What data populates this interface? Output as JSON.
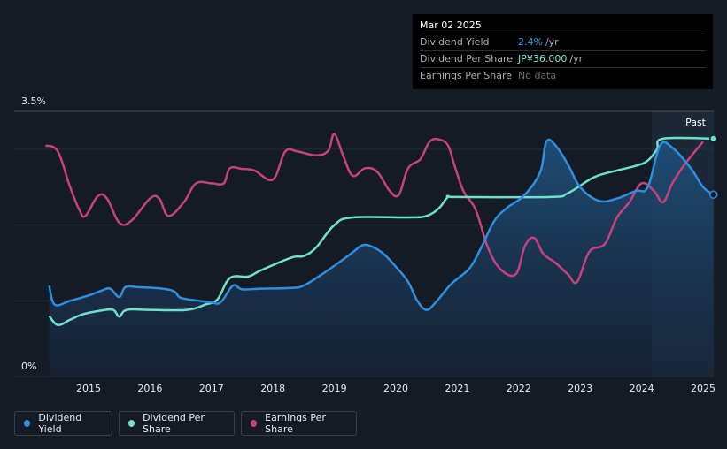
{
  "tooltip": {
    "date": "Mar 02 2025",
    "rows": [
      {
        "label": "Dividend Yield",
        "value": "2.4%",
        "unit": "/yr"
      },
      {
        "label": "Dividend Per Share",
        "value": "JP¥36.000",
        "unit": "/yr"
      },
      {
        "label": "Earnings Per Share",
        "value": "No data",
        "unit": ""
      }
    ]
  },
  "legend": [
    {
      "label": "Dividend Yield",
      "color": "#2d8fe0"
    },
    {
      "label": "Dividend Per Share",
      "color": "#6fe0cb"
    },
    {
      "label": "Earnings Per Share",
      "color": "#c8417f"
    }
  ],
  "chart_data": {
    "type": "line",
    "past_label": "Past",
    "y_axis": {
      "min": 0,
      "max": 3.5,
      "tick_labels": [
        "3.5%",
        "0%"
      ]
    },
    "x_tick_labels": [
      "2015",
      "2016",
      "2017",
      "2018",
      "2019",
      "2020",
      "2021",
      "2022",
      "2023",
      "2024",
      "2025"
    ],
    "series": [
      {
        "name": "Dividend Yield",
        "unit": "%",
        "color": "#2d8fe0",
        "points": [
          [
            2014.36,
            1.2
          ],
          [
            2014.45,
            0.95
          ],
          [
            2014.7,
            1.0
          ],
          [
            2015.0,
            1.07
          ],
          [
            2015.2,
            1.13
          ],
          [
            2015.35,
            1.16
          ],
          [
            2015.5,
            1.05
          ],
          [
            2015.6,
            1.18
          ],
          [
            2015.8,
            1.18
          ],
          [
            2016.2,
            1.16
          ],
          [
            2016.4,
            1.12
          ],
          [
            2016.5,
            1.04
          ],
          [
            2016.8,
            1.0
          ],
          [
            2017.0,
            0.98
          ],
          [
            2017.15,
            0.98
          ],
          [
            2017.35,
            1.2
          ],
          [
            2017.5,
            1.15
          ],
          [
            2017.8,
            1.16
          ],
          [
            2018.3,
            1.17
          ],
          [
            2018.5,
            1.2
          ],
          [
            2018.8,
            1.35
          ],
          [
            2019.1,
            1.52
          ],
          [
            2019.3,
            1.64
          ],
          [
            2019.45,
            1.73
          ],
          [
            2019.6,
            1.72
          ],
          [
            2019.8,
            1.62
          ],
          [
            2020.0,
            1.45
          ],
          [
            2020.2,
            1.25
          ],
          [
            2020.35,
            1.0
          ],
          [
            2020.5,
            0.88
          ],
          [
            2020.65,
            0.98
          ],
          [
            2020.9,
            1.22
          ],
          [
            2021.2,
            1.43
          ],
          [
            2021.4,
            1.72
          ],
          [
            2021.6,
            2.05
          ],
          [
            2021.8,
            2.22
          ],
          [
            2022.1,
            2.4
          ],
          [
            2022.35,
            2.7
          ],
          [
            2022.45,
            3.1
          ],
          [
            2022.6,
            3.05
          ],
          [
            2022.8,
            2.8
          ],
          [
            2023.0,
            2.5
          ],
          [
            2023.3,
            2.32
          ],
          [
            2023.6,
            2.35
          ],
          [
            2023.9,
            2.45
          ],
          [
            2024.1,
            2.5
          ],
          [
            2024.3,
            3.05
          ],
          [
            2024.5,
            3.02
          ],
          [
            2024.8,
            2.75
          ],
          [
            2025.0,
            2.5
          ],
          [
            2025.17,
            2.4
          ]
        ]
      },
      {
        "name": "Dividend Per Share",
        "unit": "JP¥",
        "color": "#6fe0cb",
        "points": [
          [
            2014.36,
            0.8
          ],
          [
            2014.5,
            0.68
          ],
          [
            2014.7,
            0.75
          ],
          [
            2014.9,
            0.82
          ],
          [
            2015.2,
            0.87
          ],
          [
            2015.4,
            0.88
          ],
          [
            2015.5,
            0.79
          ],
          [
            2015.62,
            0.88
          ],
          [
            2016.0,
            0.88
          ],
          [
            2016.6,
            0.88
          ],
          [
            2016.9,
            0.95
          ],
          [
            2017.1,
            1.02
          ],
          [
            2017.3,
            1.3
          ],
          [
            2017.6,
            1.32
          ],
          [
            2017.8,
            1.4
          ],
          [
            2018.3,
            1.57
          ],
          [
            2018.5,
            1.59
          ],
          [
            2018.7,
            1.7
          ],
          [
            2019.0,
            2.0
          ],
          [
            2019.3,
            2.1
          ],
          [
            2020.2,
            2.1
          ],
          [
            2020.5,
            2.12
          ],
          [
            2020.7,
            2.22
          ],
          [
            2020.85,
            2.37
          ],
          [
            2021.0,
            2.37
          ],
          [
            2022.5,
            2.37
          ],
          [
            2022.8,
            2.42
          ],
          [
            2023.2,
            2.62
          ],
          [
            2023.5,
            2.7
          ],
          [
            2023.9,
            2.78
          ],
          [
            2024.1,
            2.85
          ],
          [
            2024.25,
            3.0
          ],
          [
            2024.35,
            3.14
          ],
          [
            2025.17,
            3.14
          ]
        ]
      },
      {
        "name": "Earnings Per Share",
        "unit": "JP¥",
        "color": "#c8417f",
        "points": [
          [
            2014.3,
            3.05
          ],
          [
            2014.5,
            2.97
          ],
          [
            2014.7,
            2.5
          ],
          [
            2014.85,
            2.2
          ],
          [
            2014.95,
            2.12
          ],
          [
            2015.15,
            2.38
          ],
          [
            2015.3,
            2.35
          ],
          [
            2015.5,
            2.03
          ],
          [
            2015.7,
            2.06
          ],
          [
            2016.0,
            2.35
          ],
          [
            2016.15,
            2.35
          ],
          [
            2016.3,
            2.12
          ],
          [
            2016.55,
            2.3
          ],
          [
            2016.75,
            2.55
          ],
          [
            2017.0,
            2.55
          ],
          [
            2017.2,
            2.55
          ],
          [
            2017.3,
            2.75
          ],
          [
            2017.5,
            2.74
          ],
          [
            2017.7,
            2.72
          ],
          [
            2018.0,
            2.6
          ],
          [
            2018.2,
            2.97
          ],
          [
            2018.4,
            2.97
          ],
          [
            2018.7,
            2.92
          ],
          [
            2018.9,
            2.98
          ],
          [
            2019.0,
            3.2
          ],
          [
            2019.15,
            2.9
          ],
          [
            2019.3,
            2.65
          ],
          [
            2019.5,
            2.75
          ],
          [
            2019.7,
            2.7
          ],
          [
            2019.9,
            2.45
          ],
          [
            2020.05,
            2.4
          ],
          [
            2020.2,
            2.75
          ],
          [
            2020.4,
            2.87
          ],
          [
            2020.55,
            3.1
          ],
          [
            2020.7,
            3.13
          ],
          [
            2020.85,
            3.05
          ],
          [
            2020.95,
            2.8
          ],
          [
            2021.1,
            2.45
          ],
          [
            2021.3,
            2.2
          ],
          [
            2021.5,
            1.7
          ],
          [
            2021.7,
            1.42
          ],
          [
            2021.95,
            1.35
          ],
          [
            2022.1,
            1.72
          ],
          [
            2022.25,
            1.83
          ],
          [
            2022.4,
            1.62
          ],
          [
            2022.6,
            1.5
          ],
          [
            2022.8,
            1.35
          ],
          [
            2022.95,
            1.25
          ],
          [
            2023.15,
            1.65
          ],
          [
            2023.4,
            1.75
          ],
          [
            2023.6,
            2.1
          ],
          [
            2023.8,
            2.3
          ],
          [
            2024.0,
            2.55
          ],
          [
            2024.2,
            2.45
          ],
          [
            2024.35,
            2.3
          ],
          [
            2024.5,
            2.55
          ],
          [
            2024.7,
            2.8
          ],
          [
            2025.0,
            3.1
          ]
        ]
      }
    ]
  }
}
